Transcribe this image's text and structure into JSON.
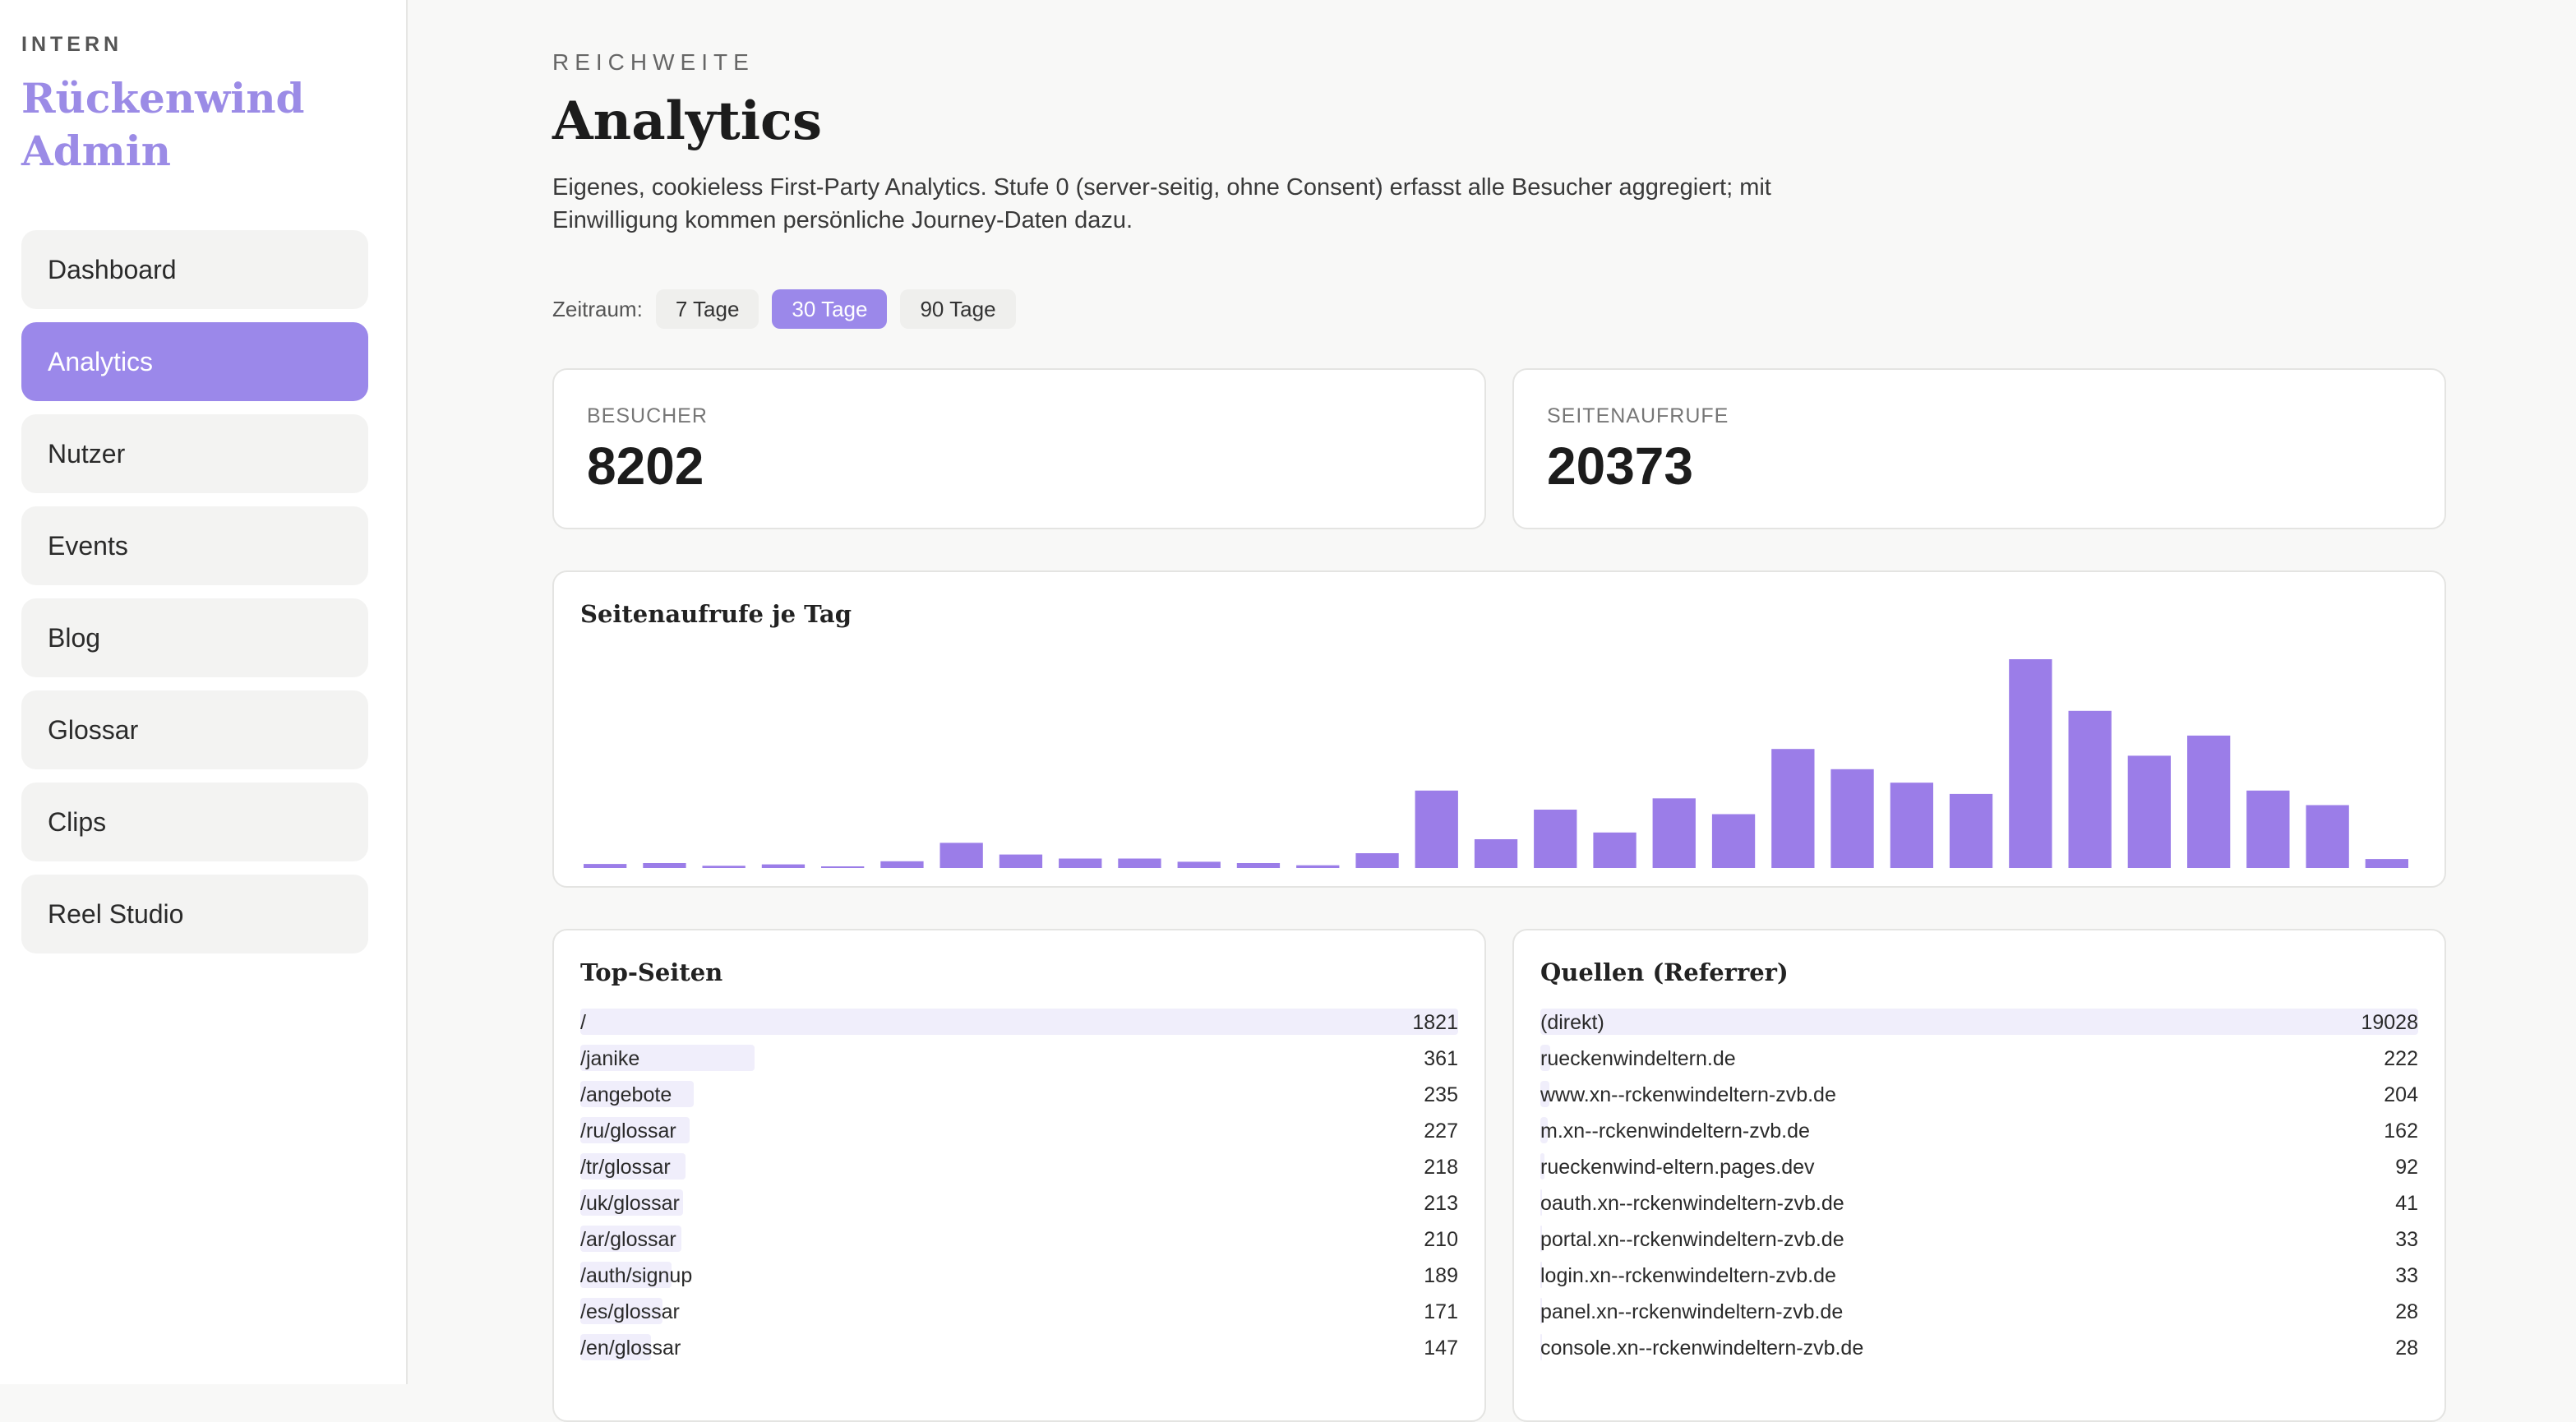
{
  "sidebar": {
    "eyebrow": "INTERN",
    "title_line1": "Rückenwind",
    "title_line2": "Admin",
    "items": [
      {
        "label": "Dashboard",
        "active": false
      },
      {
        "label": "Analytics",
        "active": true
      },
      {
        "label": "Nutzer",
        "active": false
      },
      {
        "label": "Events",
        "active": false
      },
      {
        "label": "Blog",
        "active": false
      },
      {
        "label": "Glossar",
        "active": false
      },
      {
        "label": "Clips",
        "active": false
      },
      {
        "label": "Reel Studio",
        "active": false
      }
    ]
  },
  "header": {
    "eyebrow": "REICHWEITE",
    "title": "Analytics",
    "lead": "Eigenes, cookieless First-Party Analytics. Stufe 0 (server-seitig, ohne Consent) erfasst alle Besucher aggregiert; mit Einwilligung kommen persönliche Journey-Daten dazu."
  },
  "range": {
    "label": "Zeitraum:",
    "options": [
      "7 Tage",
      "30 Tage",
      "90 Tage"
    ],
    "selected": "30 Tage"
  },
  "kpis": {
    "visitors_label": "BESUCHER",
    "visitors_value": "8202",
    "pageviews_label": "SEITENAUFRUFE",
    "pageviews_value": "20373"
  },
  "chart_title": "Seitenaufrufe je Tag",
  "chart_data": {
    "type": "bar",
    "title": "Seitenaufrufe je Tag",
    "values": [
      18,
      22,
      10,
      16,
      4,
      30,
      112,
      60,
      42,
      42,
      28,
      22,
      12,
      66,
      345,
      128,
      260,
      158,
      310,
      240,
      530,
      440,
      380,
      330,
      930,
      700,
      500,
      590,
      345,
      280,
      40
    ],
    "color": "#9b7de8",
    "grid": false
  },
  "top_pages": {
    "title": "Top-Seiten",
    "rows": [
      {
        "label": "/",
        "value": 1821
      },
      {
        "label": "/janike",
        "value": 361
      },
      {
        "label": "/angebote",
        "value": 235
      },
      {
        "label": "/ru/glossar",
        "value": 227
      },
      {
        "label": "/tr/glossar",
        "value": 218
      },
      {
        "label": "/uk/glossar",
        "value": 213
      },
      {
        "label": "/ar/glossar",
        "value": 210
      },
      {
        "label": "/auth/signup",
        "value": 189
      },
      {
        "label": "/es/glossar",
        "value": 171
      },
      {
        "label": "/en/glossar",
        "value": 147
      }
    ]
  },
  "referrers": {
    "title": "Quellen (Referrer)",
    "rows": [
      {
        "label": "(direkt)",
        "value": 19028
      },
      {
        "label": "rueckenwindeltern.de",
        "value": 222
      },
      {
        "label": "www.xn--rckenwindeltern-zvb.de",
        "value": 204
      },
      {
        "label": "m.xn--rckenwindeltern-zvb.de",
        "value": 162
      },
      {
        "label": "rueckenwind-eltern.pages.dev",
        "value": 92
      },
      {
        "label": "oauth.xn--rckenwindeltern-zvb.de",
        "value": 41
      },
      {
        "label": "portal.xn--rckenwindeltern-zvb.de",
        "value": 33
      },
      {
        "label": "login.xn--rckenwindeltern-zvb.de",
        "value": 33
      },
      {
        "label": "panel.xn--rckenwindeltern-zvb.de",
        "value": 28
      },
      {
        "label": "console.xn--rckenwindeltern-zvb.de",
        "value": 28
      }
    ]
  }
}
